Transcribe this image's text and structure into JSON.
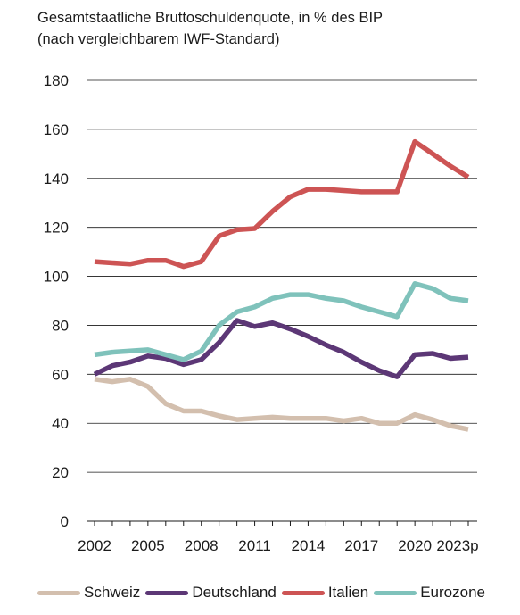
{
  "chart_data": {
    "type": "line",
    "title": "Gesamtstaatliche Bruttoschuldenquote, in % des BIP",
    "subtitle": "(nach vergleichbarem IWF-Standard)",
    "xlabel": "",
    "ylabel": "",
    "x": [
      "2002",
      "2003",
      "2004",
      "2005",
      "2006",
      "2007",
      "2008",
      "2009",
      "2010",
      "2011",
      "2012",
      "2013",
      "2014",
      "2015",
      "2016",
      "2017",
      "2018",
      "2019",
      "2020",
      "2021",
      "2022",
      "2023p"
    ],
    "x_tick_labels": [
      "2002",
      "2005",
      "2008",
      "2011",
      "2014",
      "2017",
      "2020",
      "2023p"
    ],
    "y_ticks": [
      "0",
      "20",
      "40",
      "60",
      "80",
      "100",
      "120",
      "140",
      "160",
      "180"
    ],
    "ylim": [
      0,
      180
    ],
    "grid": true,
    "legend_position": "bottom",
    "series": [
      {
        "name": "Schweiz",
        "color": "#d3bfae",
        "values": [
          58,
          57,
          58,
          55,
          48,
          45,
          45,
          43,
          41.5,
          42,
          42.5,
          42,
          42,
          42,
          41,
          42,
          40,
          40,
          43.5,
          41.5,
          39,
          37.5
        ]
      },
      {
        "name": "Deutschland",
        "color": "#5c3776",
        "values": [
          60,
          63.5,
          65,
          67.5,
          66.5,
          64,
          66,
          73,
          82,
          79.5,
          81,
          78.5,
          75.5,
          72,
          69,
          65,
          61.5,
          59,
          68,
          68.5,
          66.5,
          67
        ]
      },
      {
        "name": "Italien",
        "color": "#cd5454",
        "values": [
          106,
          105.5,
          105,
          106.5,
          106.5,
          104,
          106,
          116.5,
          119,
          119.5,
          126.5,
          132.5,
          135.5,
          135.5,
          135,
          134.5,
          134.5,
          134.5,
          155,
          150,
          145,
          140.5
        ]
      },
      {
        "name": "Eurozone",
        "color": "#7fc2bb",
        "values": [
          68,
          69,
          69.5,
          70,
          68,
          66,
          69.5,
          80,
          85.5,
          87.5,
          91,
          92.5,
          92.5,
          91,
          90,
          87.5,
          85.5,
          83.5,
          97,
          95,
          91,
          90
        ]
      }
    ]
  }
}
